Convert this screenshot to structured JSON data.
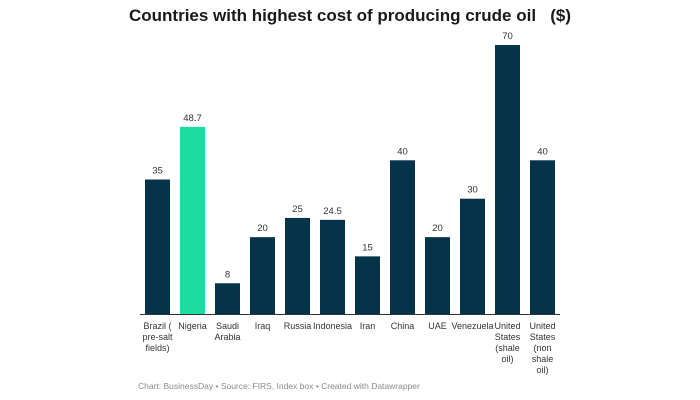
{
  "chart_data": {
    "type": "bar",
    "title": "Countries with highest cost of producing crude oil   ($)",
    "xlabel": "",
    "ylabel": "",
    "ylim": [
      0,
      70
    ],
    "categories": [
      "Brazil ( pre-salt fields)",
      "Nigeria",
      "Saudi Arabia",
      "Iraq",
      "Russia",
      "Indonesia",
      "Iran",
      "China",
      "UAE",
      "Venezuela",
      "United States (shale oil)",
      "United States (non shale oil)"
    ],
    "category_label_lines": [
      [
        "Brazil (",
        "pre-salt",
        "fields)"
      ],
      [
        "Nigeria"
      ],
      [
        "Saudi",
        "Arabia"
      ],
      [
        "Iraq"
      ],
      [
        "Russia"
      ],
      [
        "Indonesia"
      ],
      [
        "Iran"
      ],
      [
        "China"
      ],
      [
        "UAE"
      ],
      [
        "Venezuela"
      ],
      [
        "United",
        "States",
        "(shale",
        "oil)"
      ],
      [
        "United",
        "States",
        "(non",
        "shale",
        "oil)"
      ]
    ],
    "values": [
      35,
      48.7,
      8,
      20,
      25,
      24.5,
      15,
      40,
      20,
      30,
      70,
      40
    ],
    "value_labels": [
      "35",
      "48.7",
      "8",
      "20",
      "25",
      "24.5",
      "15",
      "40",
      "20",
      "30",
      "70",
      "40"
    ],
    "highlight_category": "Nigeria",
    "grid": false,
    "legend": "none"
  },
  "colors": {
    "bar": "#05344a",
    "highlight": "#1ddc9f",
    "axis": "#333333",
    "text": "#333333"
  },
  "footer": "Chart: BusinessDay • Source: FIRS, Index box • Created with Datawrapper"
}
